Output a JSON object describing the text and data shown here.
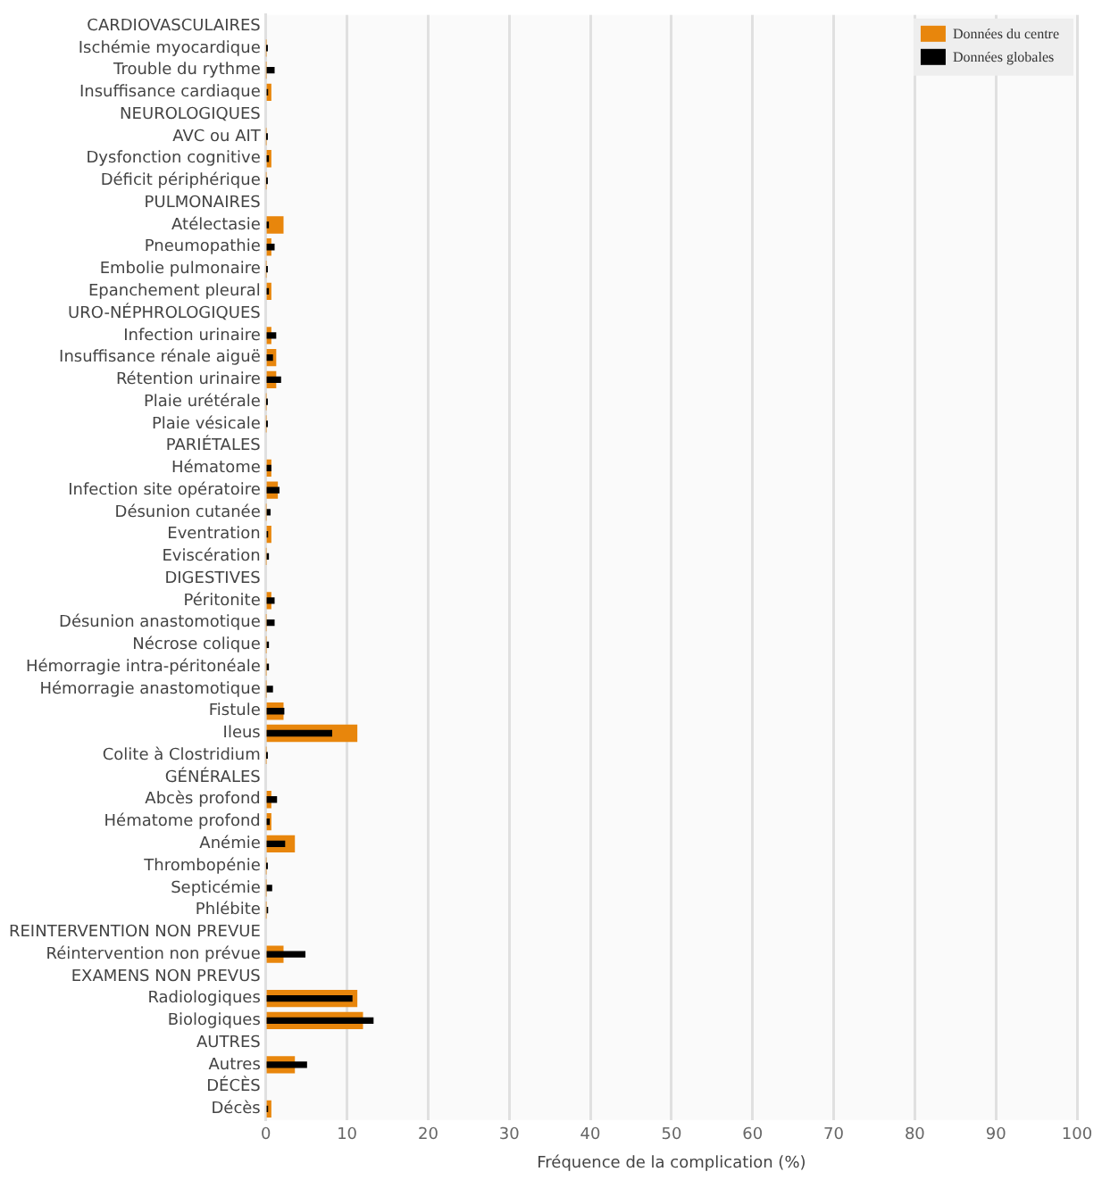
{
  "chart_data": {
    "type": "bar",
    "orientation": "horizontal",
    "xlabel": "Fréquence de la complication (%)",
    "categories": [
      "CARDIOVASCULAIRES",
      "Ischémie myocardique",
      "Trouble du rythme",
      "Insuffisance cardiaque",
      "NEUROLOGIQUES",
      "AVC ou AIT",
      "Dysfonction cognitive",
      "Déficit périphérique",
      "PULMONAIRES",
      "Atélectasie",
      "Pneumopathie",
      "Embolie pulmonaire",
      "Epanchement pleural",
      "URO-NÉPHROLOGIQUES",
      "Infection urinaire",
      "Insuffisance rénale aiguë",
      "Rétention urinaire",
      "Plaie urétérale",
      "Plaie vésicale",
      "PARIÉTALES",
      "Hématome",
      "Infection site opératoire",
      "Désunion cutanée",
      "Eventration",
      "Eviscération",
      "DIGESTIVES",
      "Péritonite",
      "Désunion anastomotique",
      "Nécrose colique",
      "Hémorragie intra-péritonéale",
      "Hémorragie anastomotique",
      "Fistule",
      "Ileus",
      "Colite à Clostridium",
      "GÉNÉRALES",
      "Abcès profond",
      "Hématome profond",
      "Anémie",
      "Thrombopénie",
      "Septicémie",
      "Phlébite",
      "REINTERVENTION NON PREVUE",
      "Réintervention non prévue",
      "EXAMENS NON PREVUS",
      "Radiologiques",
      "Biologiques",
      "AUTRES",
      "Autres",
      "DÉCÈS",
      "Décès"
    ],
    "series": [
      {
        "name": "Données du centre",
        "color": "#e8860c",
        "values": [
          null,
          0,
          0,
          0.6,
          null,
          0,
          0.6,
          0,
          null,
          2.1,
          0.6,
          0,
          0.6,
          null,
          0.6,
          1.2,
          1.2,
          0,
          0,
          null,
          0.6,
          1.4,
          0,
          0.6,
          0,
          null,
          0.6,
          0,
          0,
          0,
          0,
          2.1,
          11.2,
          0,
          null,
          0.6,
          0.6,
          3.5,
          0,
          0,
          0,
          null,
          2.1,
          null,
          11.2,
          11.9,
          null,
          3.5,
          null,
          0.6
        ]
      },
      {
        "name": "Données globales",
        "color": "#000000",
        "values": [
          null,
          0.1,
          1.0,
          0.2,
          null,
          0.1,
          0.3,
          0.1,
          null,
          0.3,
          1.0,
          0.1,
          0.3,
          null,
          1.2,
          0.8,
          1.8,
          0.1,
          0.1,
          null,
          0.6,
          1.6,
          0.5,
          0.2,
          0.3,
          null,
          1.0,
          1.0,
          0.3,
          0.3,
          0.8,
          2.2,
          8.1,
          0.1,
          null,
          1.3,
          0.4,
          2.3,
          0.1,
          0.7,
          0.2,
          null,
          4.8,
          null,
          10.6,
          13.2,
          null,
          5.0,
          null,
          0.2
        ]
      }
    ],
    "xlim": [
      0,
      100
    ],
    "xticks": [
      0,
      10,
      20,
      30,
      40,
      50,
      60,
      70,
      80,
      90,
      100
    ],
    "grid": "x",
    "legend": "top right"
  }
}
